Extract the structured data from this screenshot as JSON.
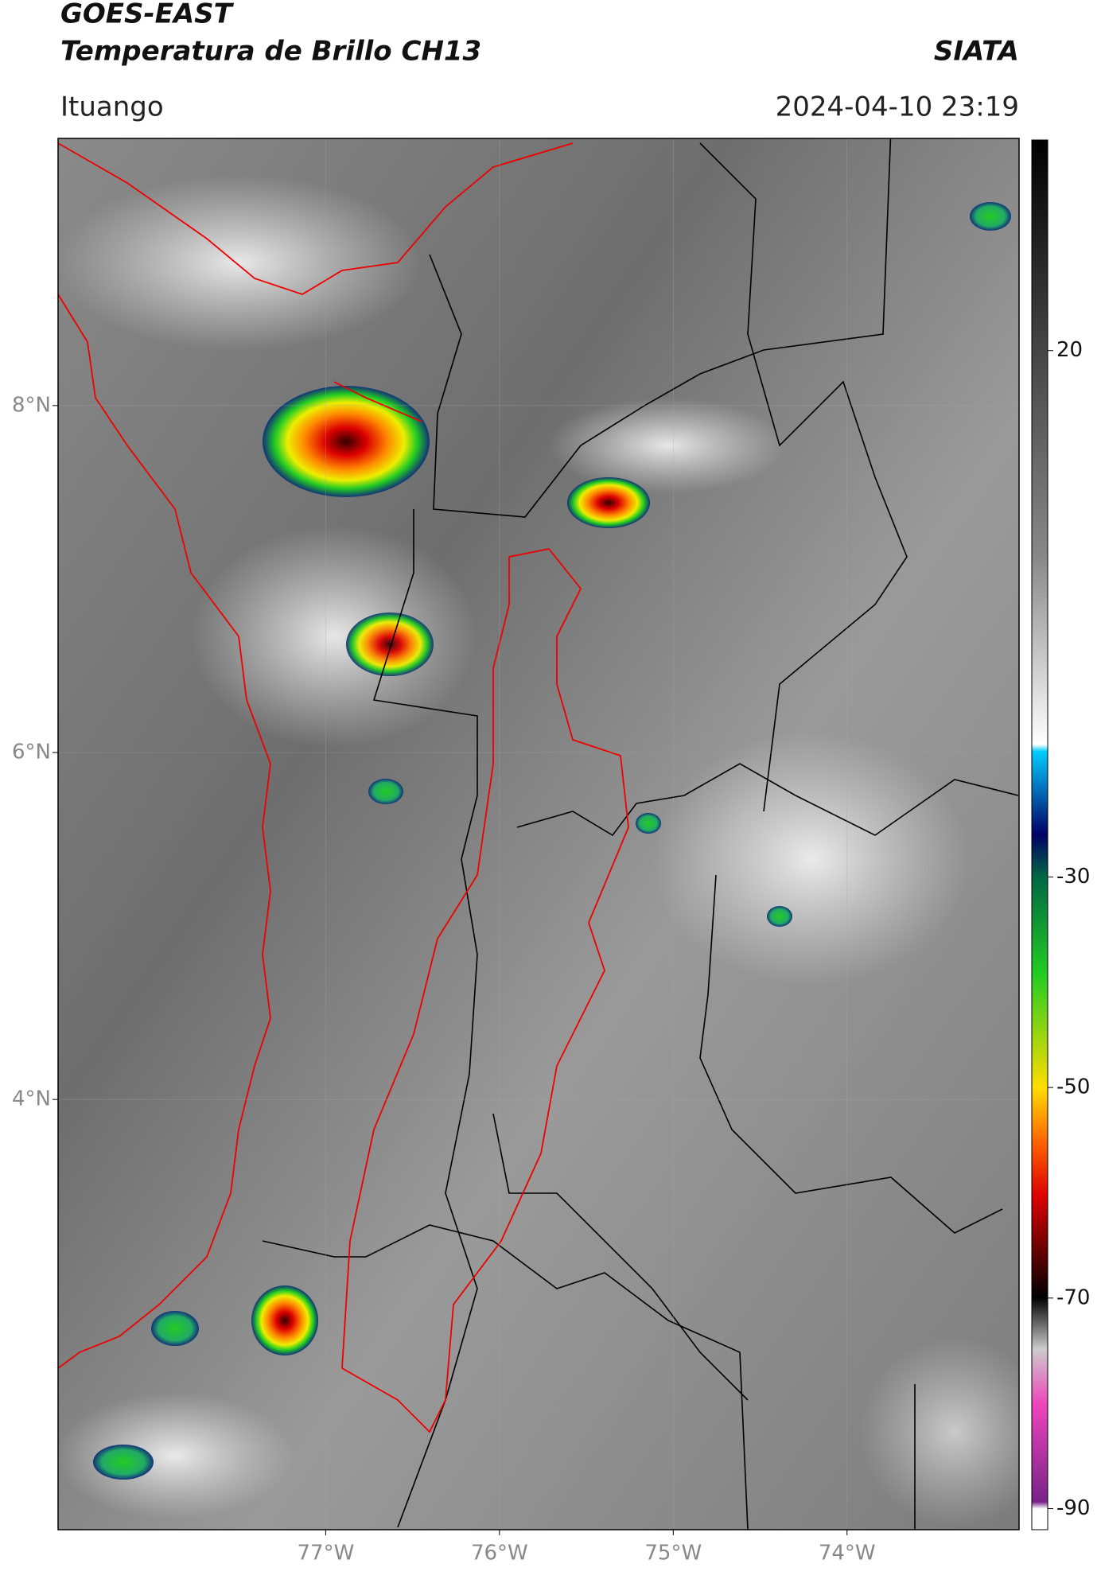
{
  "header": {
    "title": "GOES-EAST",
    "subtitle": "Temperatura de Brillo CH13",
    "organization": "SIATA",
    "location": "Ituango",
    "datetime": "2024-04-10 23:19"
  },
  "map": {
    "lonlim": [
      -78.54,
      -73.01
    ],
    "latlim": [
      1.52,
      9.54
    ],
    "lat_ticks": [
      {
        "value": 8,
        "label": "8°N"
      },
      {
        "value": 6,
        "label": "6°N"
      },
      {
        "value": 4,
        "label": "4°N"
      }
    ],
    "lon_ticks": [
      {
        "value": -77,
        "label": "77°W"
      },
      {
        "value": -76,
        "label": "76°W"
      },
      {
        "value": -75,
        "label": "75°W"
      },
      {
        "value": -74,
        "label": "74°W"
      }
    ]
  },
  "colorbar": {
    "clim": [
      -92,
      40
    ],
    "ticks": [
      20,
      -30,
      -50,
      -70,
      -90
    ]
  }
}
